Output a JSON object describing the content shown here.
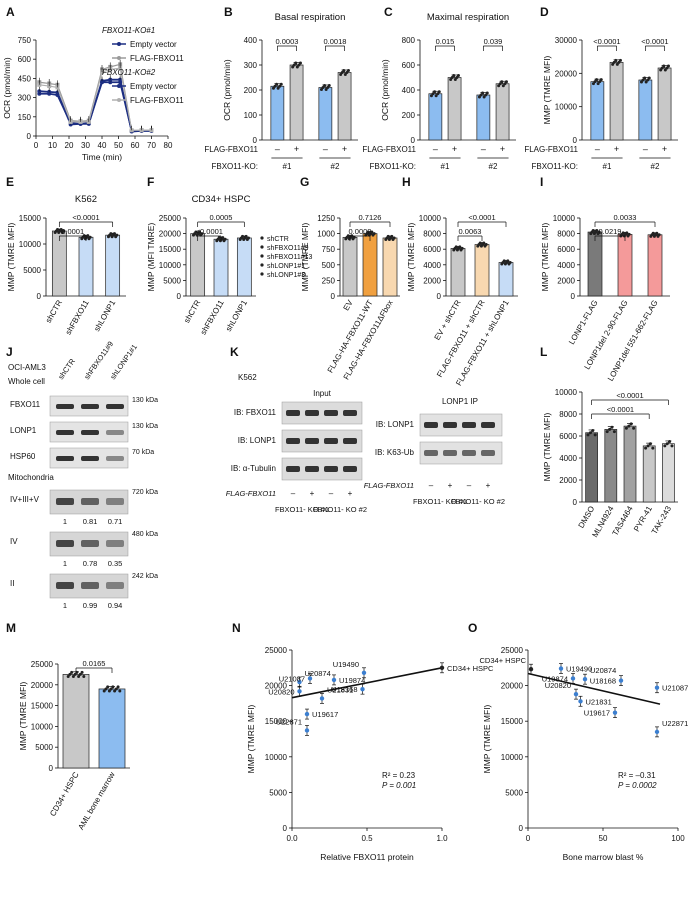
{
  "panel_letters": [
    "A",
    "B",
    "C",
    "D",
    "E",
    "F",
    "G",
    "H",
    "I",
    "J",
    "K",
    "L",
    "M",
    "N",
    "O"
  ],
  "colors": {
    "blue": "#8cbcf0",
    "lightblue": "#c6dcf6",
    "gray": "#c8c8c8",
    "darkgray": "#7a7a7a",
    "orange": "#f0a040",
    "lightorange": "#f8d8b0",
    "pink": "#f49a9a",
    "navy": "#1c2e82"
  },
  "chart_data": [
    {
      "id": "A",
      "type": "line",
      "xlabel": "Time (min)",
      "ylabel": "OCR (pmol/min)",
      "xlim": [
        0,
        80
      ],
      "ylim": [
        0,
        750
      ],
      "xticks": [
        "0",
        "10",
        "20",
        "30",
        "40",
        "50",
        "60",
        "70",
        "80"
      ],
      "yticks": [
        "0",
        "150",
        "300",
        "450",
        "600",
        "750"
      ],
      "legend_groups": [
        "FBXO11-KO#1",
        "FBXO11-KO#2"
      ],
      "x": [
        2,
        8,
        13,
        21,
        27,
        32,
        40,
        45,
        51,
        58,
        64,
        70
      ],
      "series": [
        {
          "name": "Empty vector",
          "group": "FBXO11-KO#1",
          "values": [
            330,
            330,
            320,
            100,
            95,
            100,
            420,
            420,
            420,
            40,
            40,
            40
          ]
        },
        {
          "name": "FLAG-FBXO11",
          "group": "FBXO11-KO#1",
          "values": [
            420,
            410,
            400,
            120,
            115,
            120,
            520,
            540,
            560,
            40,
            45,
            45
          ]
        },
        {
          "name": "Empty vector",
          "group": "FBXO11-KO#2",
          "values": [
            350,
            345,
            340,
            90,
            95,
            95,
            430,
            440,
            440,
            35,
            40,
            40
          ]
        },
        {
          "name": "FLAG-FBXO11",
          "group": "FBXO11-KO#2",
          "values": [
            400,
            390,
            380,
            110,
            110,
            110,
            500,
            520,
            530,
            45,
            45,
            45
          ]
        }
      ]
    },
    {
      "id": "B",
      "type": "bar",
      "title": "Basal respiration",
      "ylabel": "OCR (pmol/min)",
      "ylim": [
        0,
        400
      ],
      "yticks": [
        "0",
        "100",
        "200",
        "300",
        "400"
      ],
      "categories": [
        "#1 -",
        "#1 +",
        "#2 -",
        "#2 +"
      ],
      "values": [
        215,
        300,
        210,
        270
      ],
      "pvalues": [
        "0.0003",
        "0.0018"
      ],
      "row1_label": "FLAG-FBXO11",
      "row2_label": "FBXO11-KO:",
      "signs": [
        "–",
        "+",
        "–",
        "+"
      ],
      "ko": [
        "#1",
        "#2"
      ]
    },
    {
      "id": "C",
      "type": "bar",
      "title": "Maximal respiration",
      "ylabel": "OCR (pmol/min)",
      "ylim": [
        0,
        800
      ],
      "yticks": [
        "0",
        "200",
        "400",
        "600",
        "800"
      ],
      "categories": [
        "#1 -",
        "#1 +",
        "#2 -",
        "#2 +"
      ],
      "values": [
        370,
        500,
        360,
        450
      ],
      "pvalues": [
        "0.015",
        "0.039"
      ],
      "row1_label": "FLAG-FBXO11",
      "row2_label": "FBXO11-KO:",
      "signs": [
        "–",
        "+",
        "–",
        "+"
      ],
      "ko": [
        "#1",
        "#2"
      ]
    },
    {
      "id": "D",
      "type": "bar",
      "ylabel": "MMP (TMRE MFI)",
      "ylim": [
        0,
        30000
      ],
      "yticks": [
        "0",
        "10000",
        "20000",
        "30000"
      ],
      "categories": [
        "#1 -",
        "#1 +",
        "#2 -",
        "#2 +"
      ],
      "values": [
        17500,
        23300,
        18000,
        21600
      ],
      "pvalues": [
        "<0.0001",
        "<0.0001"
      ],
      "row1_label": "FLAG-FBXO11",
      "row2_label": "FBXO11-KO:",
      "signs": [
        "–",
        "+",
        "–",
        "+"
      ],
      "ko": [
        "#1",
        "#2"
      ]
    },
    {
      "id": "E",
      "type": "bar",
      "title": "K562",
      "ylabel": "MMP (TMRE MFI)",
      "ylim": [
        0,
        15000
      ],
      "yticks": [
        "0",
        "5000",
        "10000",
        "15000"
      ],
      "categories": [
        "shCTR",
        "shFBXO11",
        "shLONP1"
      ],
      "values": [
        12500,
        11300,
        11700
      ],
      "pvalues": [
        "0.0001",
        "<0.0001"
      ]
    },
    {
      "id": "F",
      "type": "bar",
      "title": "CD34+ HSPC",
      "ylabel": "MMP (MFI TMRE)",
      "ylim": [
        0,
        25000
      ],
      "yticks": [
        "0",
        "5000",
        "10000",
        "15000",
        "20000",
        "25000"
      ],
      "categories": [
        "shCTR",
        "shFBXO11",
        "shLONP1"
      ],
      "values": [
        20000,
        18200,
        18600
      ],
      "pvalues": [
        "<0.0001",
        "0.0005"
      ],
      "legend": [
        "shCTR",
        "shFBXO11#9",
        "shFBXO11#13",
        "shLONP1#1",
        "shLONP1#3"
      ]
    },
    {
      "id": "G",
      "type": "bar",
      "ylabel": "MMP (TMRE MFI)",
      "ylim": [
        0,
        1250
      ],
      "yticks": [
        "0",
        "250",
        "500",
        "750",
        "1000",
        "1250"
      ],
      "categories": [
        "EV",
        "FLAG-HA-FBXO11-WT",
        "FLAG-HA-FBXO11ΔFbox"
      ],
      "values": [
        940,
        1000,
        930
      ],
      "pvalues": [
        "0.0002",
        "0.7126"
      ]
    },
    {
      "id": "H",
      "type": "bar",
      "ylabel": "MMP (TMRE MFI)",
      "ylim": [
        0,
        10000
      ],
      "yticks": [
        "0",
        "2000",
        "4000",
        "6000",
        "8000",
        "10000"
      ],
      "categories": [
        "EV + shCTR",
        "FLAG-FBXO11 + shCTR",
        "FLAG-FBXO11 + shLONP1"
      ],
      "values": [
        6100,
        6600,
        4300
      ],
      "pvalues": [
        "0.0063",
        "<0.0001"
      ]
    },
    {
      "id": "I",
      "type": "bar",
      "ylabel": "MMP  (TMRE MFI)",
      "ylim": [
        0,
        10000
      ],
      "yticks": [
        "0",
        "2000",
        "4000",
        "6000",
        "8000",
        "10000"
      ],
      "categories": [
        "LONP1-FLAG",
        "LONP1del 2-90-FLAG",
        "LONP1del 551-662-FLAG"
      ],
      "values": [
        8200,
        7900,
        7850
      ],
      "pvalues": [
        "0.0219",
        "0.0033"
      ]
    },
    {
      "id": "L",
      "type": "bar",
      "ylabel": "MMP (TMRE MFI)",
      "ylim": [
        0,
        10000
      ],
      "yticks": [
        "0",
        "2000",
        "4000",
        "6000",
        "8000",
        "10000"
      ],
      "categories": [
        "DMSO",
        "MLN4924",
        "TAS4464",
        "PYR-41",
        "TAK-243"
      ],
      "values": [
        6300,
        6600,
        6900,
        5100,
        5300
      ],
      "pvalues": [
        "<0.0001",
        "<0.0001"
      ]
    },
    {
      "id": "M",
      "type": "bar",
      "ylabel": "MMP (TMRE MFI)",
      "ylim": [
        0,
        25000
      ],
      "yticks": [
        "0",
        "5000",
        "10000",
        "15000",
        "20000",
        "25000"
      ],
      "categories": [
        "CD34+ HSPC",
        "AML bone marrow"
      ],
      "values": [
        22500,
        19000
      ],
      "pvalues": [
        "0.0165"
      ]
    },
    {
      "id": "N",
      "type": "scatter",
      "xlabel": "Relative FBXO11 protein",
      "ylabel": "MMP (TMRE MFI)",
      "xlim": [
        0,
        1
      ],
      "ylim": [
        0,
        25000
      ],
      "xticks": [
        "0.0",
        "0.5",
        "1.0"
      ],
      "yticks": [
        "0",
        "5000",
        "10000",
        "15000",
        "20000",
        "25000"
      ],
      "points": [
        {
          "label": "U20874",
          "x": 0.05,
          "y": 20500
        },
        {
          "label": "U21087",
          "x": 0.12,
          "y": 21000
        },
        {
          "label": "U19874",
          "x": 0.28,
          "y": 20800
        },
        {
          "label": "U19490",
          "x": 0.48,
          "y": 21800
        },
        {
          "label": "CD34+ HSPC",
          "x": 1.0,
          "y": 22500
        },
        {
          "label": "U20820",
          "x": 0.05,
          "y": 19200
        },
        {
          "label": "U21831",
          "x": 0.2,
          "y": 18200
        },
        {
          "label": "U18168",
          "x": 0.47,
          "y": 19500
        },
        {
          "label": "U19617",
          "x": 0.1,
          "y": 16000
        },
        {
          "label": "U22871",
          "x": 0.1,
          "y": 13700
        }
      ],
      "fit": [
        [
          0,
          18300
        ],
        [
          1,
          22500
        ]
      ],
      "stats": [
        "R² = 0.23",
        "P = 0.001"
      ]
    },
    {
      "id": "O",
      "type": "scatter",
      "xlabel": "Bone marrow blast %",
      "ylabel": "MMP (TMRE MFI)",
      "xlim": [
        0,
        100
      ],
      "ylim": [
        0,
        25000
      ],
      "xticks": [
        "0",
        "50",
        "100"
      ],
      "yticks": [
        "0",
        "5000",
        "10000",
        "15000",
        "20000",
        "25000"
      ],
      "points": [
        {
          "label": "CD34+ HSPC",
          "x": 2,
          "y": 22300
        },
        {
          "label": "U19490",
          "x": 22,
          "y": 22400
        },
        {
          "label": "U19874",
          "x": 30,
          "y": 21000
        },
        {
          "label": "U20874",
          "x": 38,
          "y": 20900
        },
        {
          "label": "U18168",
          "x": 62,
          "y": 20700
        },
        {
          "label": "U21087",
          "x": 86,
          "y": 19700
        },
        {
          "label": "U20820",
          "x": 32,
          "y": 18800
        },
        {
          "label": "U21831",
          "x": 35,
          "y": 17800
        },
        {
          "label": "U19617",
          "x": 58,
          "y": 16200
        },
        {
          "label": "U22871",
          "x": 86,
          "y": 13500
        }
      ],
      "fit": [
        [
          0,
          21700
        ],
        [
          88,
          17400
        ]
      ],
      "stats": [
        "R² = –0.31",
        "P = 0.0002"
      ]
    }
  ],
  "blot_J": {
    "cell": "OCI-AML3",
    "header": "Whole cell",
    "lanes": [
      "shCTR",
      "shFBXO11#9",
      "shLONP1#1"
    ],
    "rows": [
      {
        "label": "FBXO11",
        "marker": "130 kDa"
      },
      {
        "label": "LONP1",
        "marker": "130 kDa"
      },
      {
        "label": "HSP60",
        "marker": "70 kDa"
      }
    ],
    "mito_header": "Mitochondria",
    "mito_rows": [
      {
        "label": "IV+III+V",
        "marker": "720 kDa",
        "quant": [
          "1",
          "0.81",
          "0.71"
        ]
      },
      {
        "label": "IV",
        "marker": "480 kDa",
        "quant": [
          "1",
          "0.78",
          "0.35"
        ]
      },
      {
        "label": "II",
        "marker": "242 kDa",
        "quant": [
          "1",
          "0.99",
          "0.94"
        ]
      }
    ]
  },
  "blot_K": {
    "cell": "K562",
    "input": "Input",
    "ip": "LONP1 IP",
    "input_rows": [
      "IB: FBXO11",
      "IB: LONP1",
      "IB: α-Tubulin"
    ],
    "ip_rows": [
      "IB: LONP1",
      "IB: K63-Ub"
    ],
    "flag": "FLAG-FBXO11",
    "signs": [
      "–",
      "+",
      "–",
      "+"
    ],
    "ko": [
      "FBXO11- KO #1",
      "FBXO11- KO #2"
    ]
  }
}
